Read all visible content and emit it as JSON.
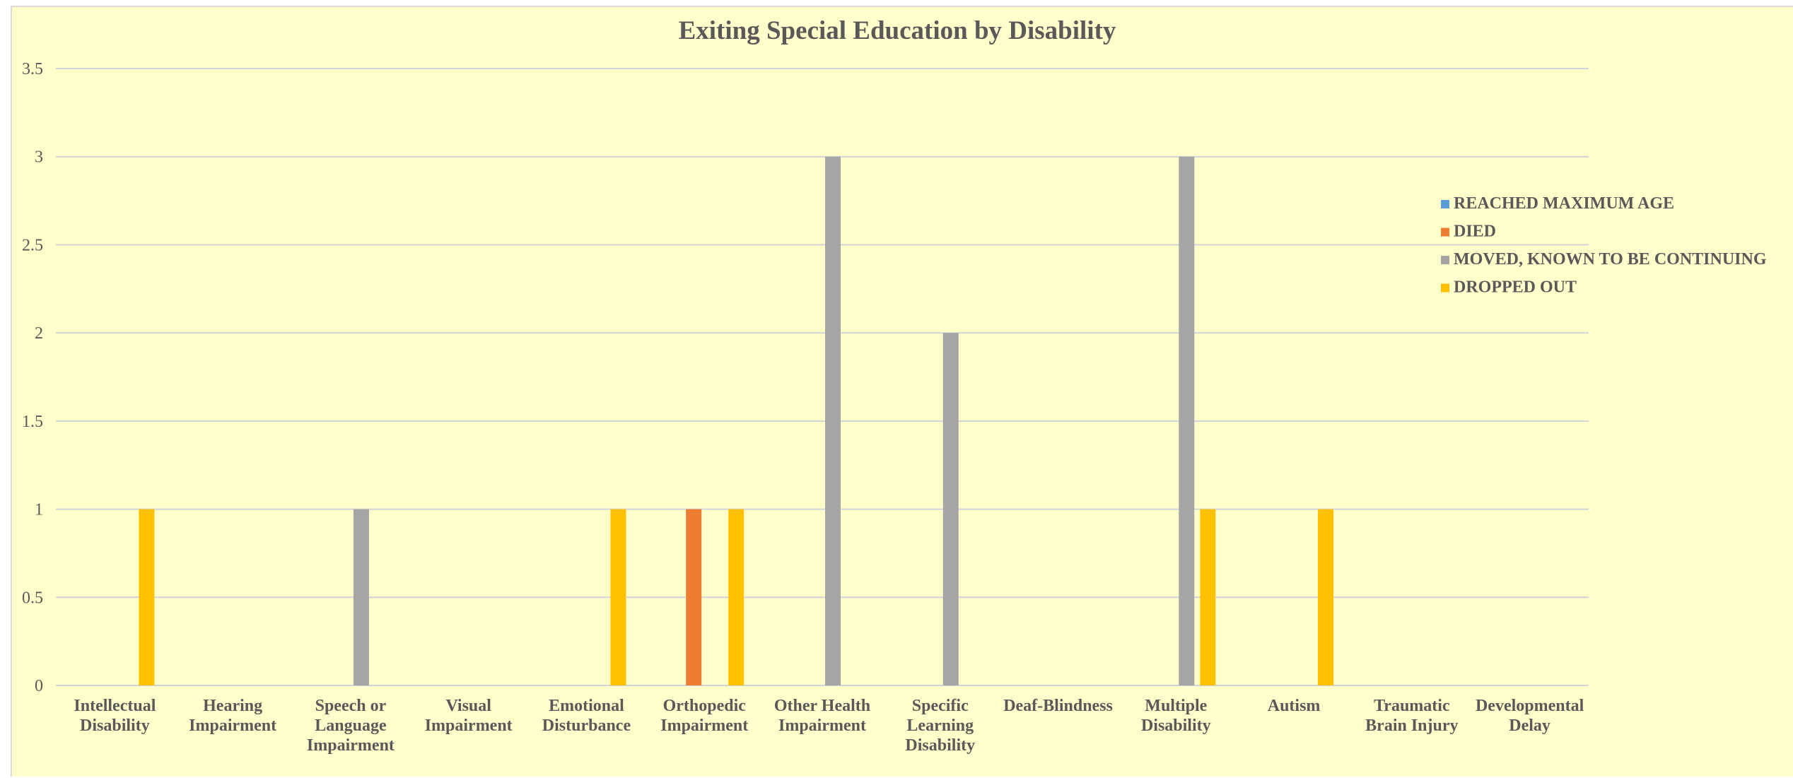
{
  "chart_data": {
    "type": "bar",
    "title": "Exiting Special Education by Disability",
    "xlabel": "",
    "ylabel": "",
    "ylim": [
      0,
      3.5
    ],
    "yticks": [
      "0",
      "0.5",
      "1",
      "1.5",
      "2",
      "2.5",
      "3",
      "3.5"
    ],
    "grid": true,
    "legend_position": "right",
    "categories": [
      [
        "Intellectual",
        "Disability"
      ],
      [
        "Hearing",
        "Impairment"
      ],
      [
        "Speech or",
        "Language",
        "Impairment"
      ],
      [
        "Visual",
        "Impairment"
      ],
      [
        "Emotional",
        "Disturbance"
      ],
      [
        "Orthopedic",
        "Impairment"
      ],
      [
        "Other Health",
        "Impairment"
      ],
      [
        "Specific",
        "Learning",
        "Disability"
      ],
      [
        "Deaf-Blindness"
      ],
      [
        "Multiple",
        "Disability"
      ],
      [
        "Autism"
      ],
      [
        "Traumatic",
        "Brain Injury"
      ],
      [
        "Developmental",
        "Delay"
      ]
    ],
    "series": [
      {
        "name": "REACHED MAXIMUM AGE",
        "color": "#5b9bd5",
        "values": [
          0,
          0,
          0,
          0,
          0,
          0,
          0,
          0,
          0,
          0,
          0,
          0,
          0
        ]
      },
      {
        "name": "DIED",
        "color": "#ed7d31",
        "values": [
          0,
          0,
          0,
          0,
          0,
          1,
          0,
          0,
          0,
          0,
          0,
          0,
          0
        ]
      },
      {
        "name": "MOVED, KNOWN TO BE CONTINUING",
        "color": "#a5a5a5",
        "values": [
          0,
          0,
          1,
          0,
          0,
          0,
          3,
          2,
          0,
          3,
          0,
          0,
          0
        ]
      },
      {
        "name": "DROPPED OUT",
        "color": "#ffc000",
        "values": [
          1,
          0,
          0,
          0,
          1,
          1,
          0,
          0,
          0,
          1,
          1,
          0,
          0
        ]
      }
    ]
  }
}
